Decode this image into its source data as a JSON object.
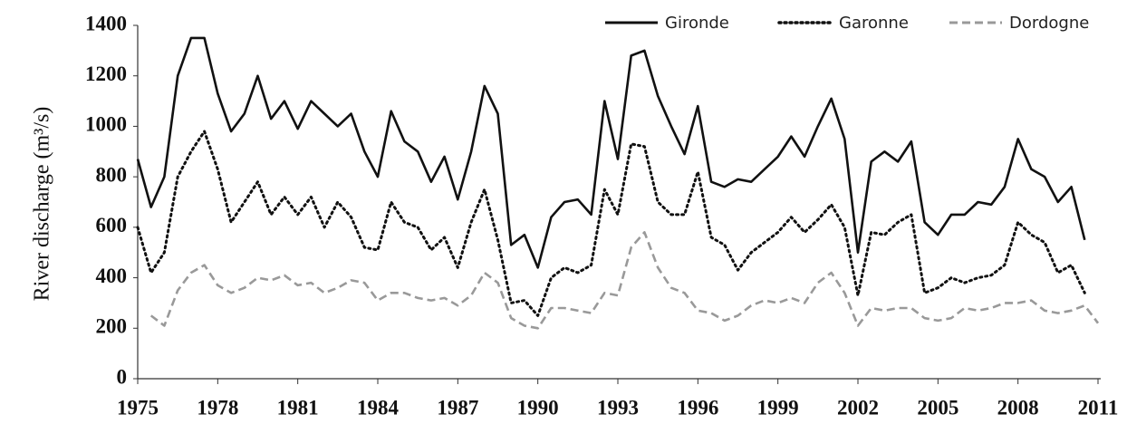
{
  "chart_data": {
    "type": "line",
    "y_label": "River discharge (m³/s)",
    "x": [
      1975,
      1975.5,
      1976,
      1976.5,
      1977,
      1977.5,
      1978,
      1978.5,
      1979,
      1979.5,
      1980,
      1980.5,
      1981,
      1981.5,
      1982,
      1982.5,
      1983,
      1983.5,
      1984,
      1984.5,
      1985,
      1985.5,
      1986,
      1986.5,
      1987,
      1987.5,
      1988,
      1988.5,
      1989,
      1989.5,
      1990,
      1990.5,
      1991,
      1991.5,
      1992,
      1992.5,
      1993,
      1993.5,
      1994,
      1994.5,
      1995,
      1995.5,
      1996,
      1996.5,
      1997,
      1997.5,
      1998,
      1998.5,
      1999,
      1999.5,
      2000,
      2000.5,
      2001,
      2001.5,
      2002,
      2002.5,
      2003,
      2003.5,
      2004,
      2004.5,
      2005,
      2005.5,
      2006,
      2006.5,
      2007,
      2007.5,
      2008,
      2008.5,
      2009,
      2009.5,
      2010,
      2010.5,
      2011
    ],
    "series": [
      {
        "name": "Gironde",
        "color": "#111111",
        "dash": "solid",
        "values": [
          870,
          680,
          800,
          1200,
          1350,
          1350,
          1130,
          980,
          1050,
          1200,
          1030,
          1100,
          990,
          1100,
          1050,
          1000,
          1050,
          900,
          800,
          1060,
          940,
          900,
          780,
          880,
          710,
          900,
          1160,
          1050,
          530,
          570,
          440,
          640,
          700,
          710,
          650,
          1100,
          870,
          1280,
          1300,
          1120,
          1000,
          890,
          1080,
          780,
          760,
          790,
          780,
          830,
          880,
          960,
          880,
          1000,
          1110,
          950,
          500,
          860,
          900,
          860,
          940,
          620,
          570,
          650,
          650,
          700,
          690,
          760,
          950,
          830,
          800,
          700,
          760,
          550,
          null
        ]
      },
      {
        "name": "Garonne",
        "color": "#111111",
        "dash": "dotted",
        "values": [
          600,
          420,
          500,
          800,
          900,
          980,
          830,
          620,
          700,
          780,
          650,
          720,
          650,
          720,
          600,
          700,
          640,
          520,
          510,
          700,
          620,
          600,
          510,
          560,
          440,
          620,
          750,
          550,
          300,
          310,
          250,
          400,
          440,
          420,
          450,
          750,
          650,
          930,
          920,
          700,
          650,
          650,
          820,
          560,
          530,
          430,
          500,
          540,
          580,
          640,
          580,
          630,
          690,
          600,
          330,
          580,
          570,
          620,
          650,
          340,
          360,
          400,
          380,
          400,
          410,
          450,
          620,
          570,
          540,
          420,
          450,
          340,
          null
        ]
      },
      {
        "name": "Dordogne",
        "color": "#999999",
        "dash": "dashed",
        "values": [
          null,
          250,
          210,
          350,
          420,
          450,
          370,
          340,
          360,
          400,
          390,
          410,
          370,
          380,
          340,
          360,
          390,
          380,
          310,
          340,
          340,
          320,
          310,
          320,
          290,
          330,
          420,
          380,
          240,
          210,
          200,
          280,
          280,
          270,
          260,
          340,
          330,
          520,
          580,
          440,
          360,
          340,
          270,
          260,
          230,
          250,
          290,
          310,
          300,
          320,
          300,
          380,
          420,
          340,
          210,
          280,
          270,
          280,
          280,
          240,
          230,
          240,
          280,
          270,
          280,
          300,
          300,
          310,
          270,
          260,
          270,
          290,
          220
        ]
      }
    ],
    "xlim": [
      1975,
      2011
    ],
    "xticks": [
      1975,
      1978,
      1981,
      1984,
      1987,
      1990,
      1993,
      1996,
      1999,
      2002,
      2005,
      2008,
      2011
    ],
    "ylim": [
      0,
      1400
    ],
    "yticks": [
      0,
      200,
      400,
      600,
      800,
      1000,
      1200,
      1400
    ],
    "legend": "top-right"
  }
}
